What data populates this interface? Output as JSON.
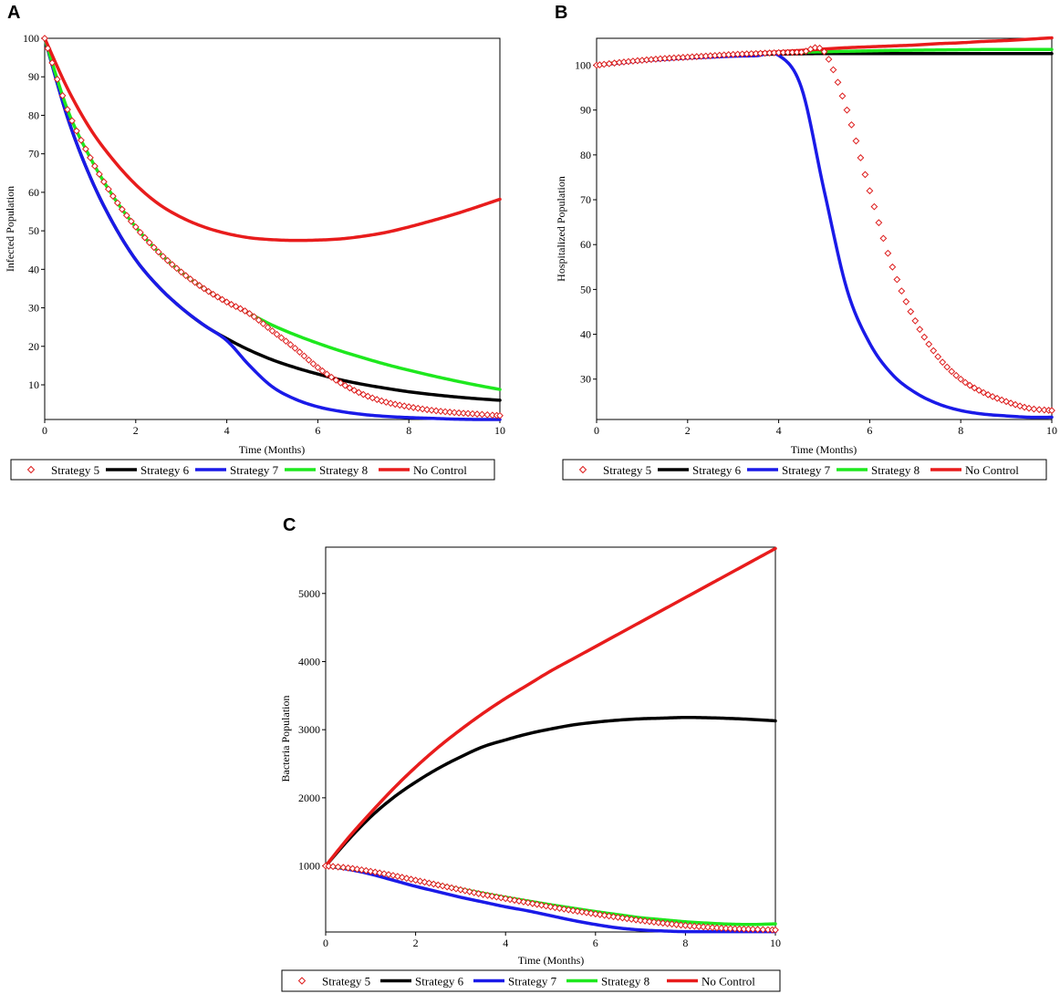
{
  "panels": [
    {
      "letter": "A",
      "chart_data": {
        "type": "line",
        "title": "",
        "xlabel": "Time (Months)",
        "ylabel": "Infected Population",
        "xlim": [
          0,
          10
        ],
        "ylim": [
          1,
          100
        ],
        "xticks": [
          "0",
          "2",
          "4",
          "6",
          "8",
          "10"
        ],
        "yticks": [
          "10",
          "20",
          "30",
          "40",
          "50",
          "60",
          "70",
          "80",
          "90",
          "100"
        ],
        "x": [
          0,
          0.5,
          1,
          1.5,
          2,
          2.5,
          3,
          3.5,
          4,
          4.5,
          5,
          5.5,
          6,
          6.5,
          7,
          7.5,
          8,
          8.5,
          9,
          9.5,
          10
        ],
        "series": [
          {
            "name": "Strategy 5",
            "style": "diamond",
            "color": "#dd1c1c",
            "values": [
              100,
              81.5,
              69,
              59,
              51,
              44.5,
              39.3,
              35,
              31.5,
              28.5,
              24,
              19.5,
              14.5,
              10.5,
              7.5,
              5.5,
              4.3,
              3.4,
              2.8,
              2.4,
              2.0
            ]
          },
          {
            "name": "Strategy 6",
            "style": "line",
            "color": "#000000",
            "values": [
              100,
              79.5,
              64,
              52,
              42.5,
              35.5,
              30,
              25.5,
              22,
              19,
              16.5,
              14.5,
              12.8,
              11.3,
              10.1,
              9.1,
              8.2,
              7.5,
              6.9,
              6.4,
              6.0
            ]
          },
          {
            "name": "Strategy 7",
            "style": "line",
            "color": "#1a1ae8",
            "values": [
              100,
              79.5,
              64,
              52,
              42.5,
              35.5,
              30,
              25.5,
              21.5,
              15,
              9.5,
              6.3,
              4.3,
              3.1,
              2.3,
              1.8,
              1.5,
              1.3,
              1.1,
              1.0,
              1.0
            ]
          },
          {
            "name": "Strategy 8",
            "style": "line",
            "color": "#1ee81e",
            "values": [
              100,
              81.5,
              69,
              59,
              51,
              44.5,
              39.3,
              35,
              31.5,
              28.5,
              25.5,
              23,
              20.8,
              18.8,
              17,
              15.3,
              13.8,
              12.4,
              11.1,
              9.9,
              8.8
            ]
          },
          {
            "name": "No Control",
            "style": "line",
            "color": "#e81c1c",
            "values": [
              100,
              87,
              76.5,
              68.5,
              62,
              57,
              53.5,
              51,
              49.3,
              48.2,
              47.7,
              47.5,
              47.6,
              47.9,
              48.6,
              49.6,
              51,
              52.6,
              54.3,
              56.2,
              58.2
            ]
          }
        ],
        "legend_position": "bottom"
      }
    },
    {
      "letter": "B",
      "chart_data": {
        "type": "line",
        "title": "",
        "xlabel": "Time (Months)",
        "ylabel": "Hospitalized Population",
        "xlim": [
          0,
          10
        ],
        "ylim": [
          21,
          106
        ],
        "xticks": [
          "0",
          "2",
          "4",
          "6",
          "8",
          "10"
        ],
        "yticks": [
          "30",
          "40",
          "50",
          "60",
          "70",
          "80",
          "90",
          "100"
        ],
        "x": [
          0,
          0.5,
          1,
          1.5,
          2,
          2.5,
          3,
          3.5,
          4,
          4.5,
          5,
          5.5,
          6,
          6.5,
          7,
          7.5,
          8,
          8.5,
          9,
          9.5,
          10
        ],
        "series": [
          {
            "name": "Strategy 5",
            "style": "diamond",
            "color": "#dd1c1c",
            "values": [
              100,
              100.6,
              101.1,
              101.5,
              101.8,
              102.1,
              102.4,
              102.6,
              102.8,
              102.9,
              103,
              90,
              72,
              55,
              43,
              35,
              30,
              27,
              25,
              23.5,
              23
            ]
          },
          {
            "name": "Strategy 6",
            "style": "line",
            "color": "#000000",
            "values": [
              100,
              100.6,
              101.1,
              101.5,
              101.8,
              102.1,
              102.3,
              102.4,
              102.5,
              102.55,
              102.6,
              102.6,
              102.6,
              102.6,
              102.6,
              102.6,
              102.6,
              102.6,
              102.6,
              102.6,
              102.6
            ]
          },
          {
            "name": "Strategy 7",
            "style": "line",
            "color": "#1a1ae8",
            "values": [
              100,
              100.5,
              101,
              101.3,
              101.6,
              101.8,
              102,
              102.1,
              102.2,
              95,
              72,
              50,
              38,
              31,
              27,
              24.5,
              23,
              22.2,
              21.8,
              21.5,
              21.5
            ]
          },
          {
            "name": "Strategy 8",
            "style": "line",
            "color": "#1ee81e",
            "values": [
              100,
              100.6,
              101.1,
              101.5,
              101.8,
              102.1,
              102.4,
              102.6,
              102.8,
              102.9,
              103,
              103.1,
              103.2,
              103.3,
              103.35,
              103.4,
              103.45,
              103.5,
              103.5,
              103.5,
              103.5
            ]
          },
          {
            "name": "No Control",
            "style": "line",
            "color": "#e81c1c",
            "values": [
              100,
              100.6,
              101.1,
              101.5,
              101.8,
              102.1,
              102.4,
              102.7,
              103,
              103.3,
              103.6,
              103.9,
              104.1,
              104.3,
              104.5,
              104.8,
              105,
              105.3,
              105.5,
              105.8,
              106.1
            ]
          }
        ],
        "legend_position": "bottom"
      }
    },
    {
      "letter": "C",
      "chart_data": {
        "type": "line",
        "title": "",
        "xlabel": "Time (Months)",
        "ylabel": "Bacteria Population",
        "xlim": [
          0,
          10
        ],
        "ylim": [
          30,
          5680
        ],
        "xticks": [
          "0",
          "2",
          "4",
          "6",
          "8",
          "10"
        ],
        "yticks": [
          "1000",
          "2000",
          "3000",
          "4000",
          "5000"
        ],
        "x": [
          0,
          0.5,
          1,
          1.5,
          2,
          2.5,
          3,
          3.5,
          4,
          4.5,
          5,
          5.5,
          6,
          6.5,
          7,
          7.5,
          8,
          8.5,
          9,
          9.5,
          10
        ],
        "series": [
          {
            "name": "Strategy 5",
            "style": "diamond",
            "color": "#dd1c1c",
            "values": [
              1000,
              970,
              920,
              860,
              790,
              720,
              650,
              580,
              520,
              460,
              400,
              345,
              295,
              245,
              200,
              160,
              125,
              100,
              80,
              70,
              60
            ]
          },
          {
            "name": "Strategy 6",
            "style": "line",
            "color": "#000000",
            "values": [
              1000,
              1380,
              1720,
              2000,
              2230,
              2430,
              2600,
              2750,
              2850,
              2940,
              3010,
              3070,
              3110,
              3140,
              3160,
              3170,
              3180,
              3175,
              3165,
              3150,
              3130
            ]
          },
          {
            "name": "Strategy 7",
            "style": "line",
            "color": "#1a1ae8",
            "values": [
              1000,
              950,
              880,
              790,
              700,
              620,
              540,
              470,
              400,
              340,
              270,
              200,
              140,
              90,
              60,
              45,
              35,
              35,
              35,
              35,
              35
            ]
          },
          {
            "name": "Strategy 8",
            "style": "line",
            "color": "#1ee81e",
            "values": [
              1000,
              965,
              920,
              860,
              790,
              725,
              660,
              600,
              540,
              485,
              430,
              380,
              330,
              285,
              240,
              210,
              180,
              160,
              145,
              140,
              150
            ]
          },
          {
            "name": "No Control",
            "style": "line",
            "color": "#e81c1c",
            "values": [
              1000,
              1410,
              1780,
              2130,
              2450,
              2740,
              3000,
              3240,
              3460,
              3660,
              3860,
              4040,
              4220,
              4400,
              4580,
              4760,
              4940,
              5120,
              5300,
              5480,
              5660
            ]
          }
        ],
        "legend_position": "bottom"
      }
    }
  ]
}
